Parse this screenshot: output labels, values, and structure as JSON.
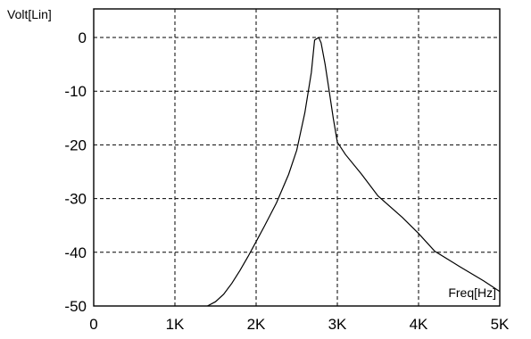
{
  "chart_data": {
    "type": "line",
    "ylabel": "Volt[Lin]",
    "xlabel": "Freq[Hz]",
    "xlim": [
      0,
      5000
    ],
    "ylim": [
      -50,
      2
    ],
    "x_ticks": [
      {
        "value": 0,
        "label": "0"
      },
      {
        "value": 1000,
        "label": "1K"
      },
      {
        "value": 2000,
        "label": "2K"
      },
      {
        "value": 3000,
        "label": "3K"
      },
      {
        "value": 4000,
        "label": "4K"
      },
      {
        "value": 5000,
        "label": "5K"
      }
    ],
    "y_ticks": [
      {
        "value": 0,
        "label": "0"
      },
      {
        "value": -10,
        "label": "-10"
      },
      {
        "value": -20,
        "label": "-20"
      },
      {
        "value": -30,
        "label": "-30"
      },
      {
        "value": -40,
        "label": "-40"
      },
      {
        "value": -50,
        "label": "-50"
      }
    ],
    "grid": true,
    "series": [
      {
        "x": [
          1400,
          1500,
          1600,
          1700,
          1800,
          1900,
          2000,
          2100,
          2250,
          2400,
          2500,
          2600,
          2680,
          2720,
          2770,
          2800,
          2850,
          2900,
          2950,
          3000,
          3100,
          3300,
          3500,
          3800,
          4000,
          4200,
          4500,
          4800,
          5000
        ],
        "y": [
          -50,
          -49.2,
          -47.8,
          -45.8,
          -43.4,
          -40.8,
          -38,
          -35.2,
          -30.8,
          -25.5,
          -21,
          -14,
          -6.5,
          -0.5,
          0,
          -1,
          -5,
          -10,
          -15,
          -19.5,
          -21.8,
          -25.5,
          -29.5,
          -33.5,
          -36.5,
          -39.8,
          -42.6,
          -45.3,
          -47.3
        ]
      }
    ]
  }
}
